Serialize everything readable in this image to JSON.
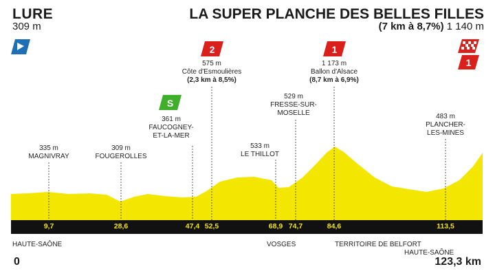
{
  "start": {
    "name": "LURE",
    "altitude": "309 m"
  },
  "finish": {
    "name": "LA SUPER PLANCHE DES BELLES FILLES",
    "climb": "(7 km à 8,7%)",
    "altitude": "1 140 m"
  },
  "icons": {
    "start": "start-flag-icon",
    "finish": "finish-checkered-flag-icon",
    "finish_cat": "1",
    "sprint": "S"
  },
  "colors": {
    "profile": "#f3e600",
    "band": "#111111",
    "start_flag": "#1f6fb5",
    "category": "#d9201c",
    "sprint": "#3fae2a"
  },
  "points": [
    {
      "alt": "335 m",
      "name": "MAGNIVRAY",
      "km": "9,7"
    },
    {
      "alt": "309 m",
      "name": "FOUGEROLLES",
      "km": "28,6"
    },
    {
      "alt": "361 m",
      "name1": "FAUCOGNEY-",
      "name2": "ET-LA-MER",
      "km": "47,4",
      "badge": "S"
    },
    {
      "alt": "575 m",
      "name": "Côte d'Esmoulières",
      "climb": "(2,3 km à 8,5%)",
      "km": "52,5",
      "category": "2"
    },
    {
      "alt": "533 m",
      "name": "LE THILLOT",
      "km": "68,9"
    },
    {
      "alt": "529 m",
      "name1": "FRESSE-SUR-",
      "name2": "MOSELLE",
      "km": "74,7"
    },
    {
      "alt": "1 173 m",
      "name": "Ballon d'Alsace",
      "climb": "(8,7 km à 6,9%)",
      "km": "84,6",
      "category": "1"
    },
    {
      "alt": "483 m",
      "name1": "PLANCHER-",
      "name2": "LES-MINES",
      "km": "113,5"
    }
  ],
  "regions": {
    "r1": "HAUTE-SAÔNE",
    "r2": "VOSGES",
    "r3": "TERRITOIRE DE BELFORT",
    "r4": "HAUTE-SAÔNE"
  },
  "distance": {
    "start": "0",
    "end": "123,3 km"
  }
}
